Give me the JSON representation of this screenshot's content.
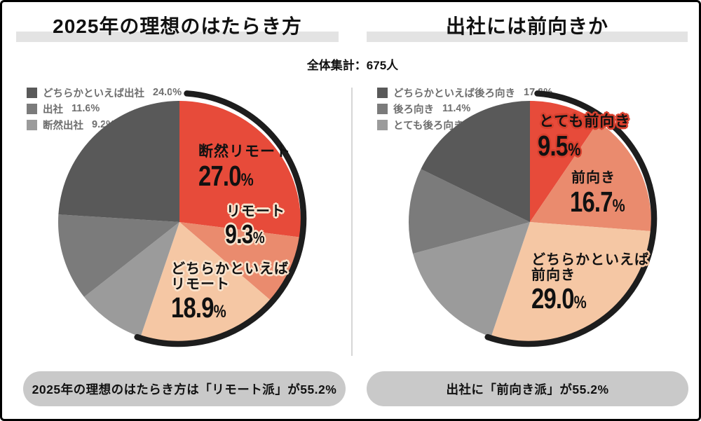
{
  "header": {
    "left_title": "2025年の理想のはたらき方",
    "right_title": "出社には前向きか",
    "total_label": "全体集計：675人"
  },
  "ui": {
    "percent_sign": "%",
    "highlight_bar_color": "#e3e3e3",
    "pill_color": "#c9c9c9",
    "arc_color": "#1d1d1d",
    "accent_red": "#e74b3a"
  },
  "chart_data": [
    {
      "type": "pie",
      "title": "2025年の理想のはたらき方",
      "start_angle_deg": 0,
      "direction": "clockwise",
      "slices": [
        {
          "label": "断然リモート",
          "value": "27.0",
          "color": "#e74b3a",
          "label_lines": [
            "断然リモート"
          ]
        },
        {
          "label": "リモート",
          "value": "9.3",
          "color": "#ea8b6e",
          "label_lines": [
            "リモート"
          ]
        },
        {
          "label": "どちらかといえばリモート",
          "value": "18.9",
          "color": "#f5c7a4",
          "label_lines": [
            "どちらかといえば",
            "リモート"
          ]
        },
        {
          "label": "断然出社",
          "value": "9.2",
          "color": "#9b9b9b",
          "label_lines": [
            "断然出社"
          ]
        },
        {
          "label": "出社",
          "value": "11.6",
          "color": "#7b7b7b",
          "label_lines": [
            "出社"
          ]
        },
        {
          "label": "どちらかといえば出社",
          "value": "24.0",
          "color": "#595959",
          "label_lines": [
            "どちらかといえば出社"
          ]
        }
      ],
      "legend_note": "legend shows office-leaning slices",
      "summary": "2025年の理想のはたらき方は「リモート派」が55.2%"
    },
    {
      "type": "pie",
      "title": "出社には前向きか",
      "start_angle_deg": 0,
      "direction": "clockwise",
      "slices": [
        {
          "label": "とても前向き",
          "value": "9.5",
          "color": "#e74b3a",
          "label_lines": [
            "とても前向き"
          ]
        },
        {
          "label": "前向き",
          "value": "16.7",
          "color": "#ea8b6e",
          "label_lines": [
            "前向き"
          ]
        },
        {
          "label": "どちらかといえば前向き",
          "value": "29.0",
          "color": "#f5c7a4",
          "label_lines": [
            "どちらかといえば",
            "前向き"
          ]
        },
        {
          "label": "とても後ろ向き",
          "value": "15.6",
          "color": "#9b9b9b",
          "label_lines": [
            "とても後ろ向き"
          ]
        },
        {
          "label": "後ろ向き",
          "value": "11.4",
          "color": "#7b7b7b",
          "label_lines": [
            "後ろ向き"
          ]
        },
        {
          "label": "どちらかといえば後ろ向き",
          "value": "17.8",
          "color": "#595959",
          "label_lines": [
            "どちらかといえば後ろ向き"
          ]
        }
      ],
      "legend_note": "legend shows negative-leaning slices",
      "summary": "出社に「前向き派」が55.2%"
    }
  ]
}
